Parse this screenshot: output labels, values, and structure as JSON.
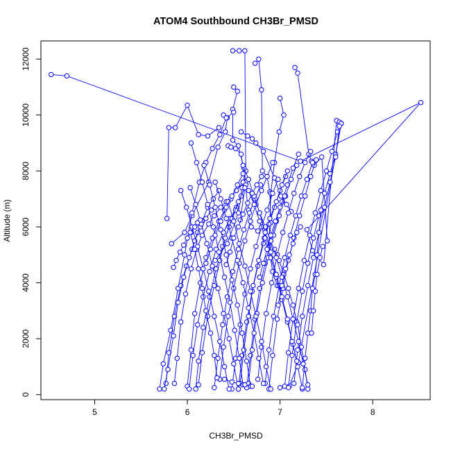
{
  "chart_data": {
    "type": "line",
    "title": "ATOM4 Southbound CH3Br_PMSD",
    "xlabel": "CH3Br_PMSD",
    "ylabel": "Altitude (m)",
    "xlim": [
      4.42,
      8.62
    ],
    "ylim": [
      -180,
      12650
    ],
    "xticks": [
      5,
      6,
      7,
      8
    ],
    "yticks": [
      0,
      2000,
      4000,
      6000,
      8000,
      10000,
      12000
    ],
    "series_color": "#0000ff",
    "markers": "open-circle",
    "grid": false,
    "profiles": [
      {
        "x": [
          5.78,
          5.8,
          5.87,
          6.0,
          6.12,
          6.22,
          6.34
        ],
        "y": [
          6300,
          9550,
          9550,
          10350,
          9300,
          9250,
          9550
        ]
      },
      {
        "x": [
          4.53,
          4.7,
          7.22,
          8.52,
          7.29,
          7.35,
          7.47,
          7.61,
          7.64,
          7.66,
          7.2,
          7.1,
          7.0
        ],
        "y": [
          11450,
          11400,
          8350,
          10450,
          5900,
          5150,
          4650,
          9800,
          9750,
          9700,
          1150,
          300,
          250
        ]
      },
      {
        "x": [
          6.49,
          6.56,
          6.62,
          6.63,
          6.59,
          6.55,
          6.43,
          6.3
        ],
        "y": [
          12300,
          12300,
          12300,
          8000,
          7400,
          6500,
          5400,
          4800
        ]
      },
      {
        "x": [
          6.73,
          6.77,
          6.8,
          6.81,
          6.86,
          6.89,
          6.9,
          6.88
        ],
        "y": [
          11850,
          12000,
          10900,
          8000,
          7800,
          7250,
          6150,
          5300
        ]
      },
      {
        "x": [
          6.5,
          6.54,
          6.49,
          6.49,
          6.55,
          6.61,
          6.63,
          6.57
        ],
        "y": [
          11000,
          10850,
          10200,
          9100,
          8900,
          8100,
          7600,
          6250
        ]
      },
      {
        "x": [
          6.39,
          6.43,
          6.41,
          6.33,
          6.23,
          6.05,
          5.97,
          5.83
        ],
        "y": [
          10000,
          9900,
          9400,
          8850,
          7600,
          6400,
          5800,
          5400
        ]
      },
      {
        "x": [
          7.0,
          7.04,
          6.99,
          6.94,
          6.9,
          6.88,
          6.92,
          6.97
        ],
        "y": [
          10600,
          10000,
          9400,
          8300,
          7200,
          5300,
          4400,
          3900
        ]
      },
      {
        "x": [
          7.16,
          7.19,
          7.31,
          7.34,
          7.37,
          7.45,
          7.51
        ],
        "y": [
          11700,
          11500,
          8600,
          8350,
          8200,
          8500,
          5500
        ]
      },
      {
        "x": [
          6.58,
          6.65,
          6.7,
          6.74,
          6.82,
          6.94,
          7.01,
          7.07,
          7.12
        ],
        "y": [
          9400,
          9250,
          9150,
          9000,
          8700,
          7750,
          7100,
          6800,
          6550
        ]
      },
      {
        "x": [
          6.44,
          6.47,
          6.52,
          6.58,
          6.66,
          6.69,
          6.76
        ],
        "y": [
          8900,
          8850,
          8800,
          8600,
          6600,
          6000,
          5850
        ]
      },
      {
        "x": [
          5.7,
          5.74,
          5.82,
          5.9,
          5.97,
          6.05,
          6.13,
          6.2,
          6.27,
          6.35,
          6.42,
          6.5
        ],
        "y": [
          200,
          1100,
          2300,
          3800,
          5000,
          6500,
          7600,
          8300,
          8800,
          9300,
          9900,
          10100
        ]
      },
      {
        "x": [
          5.77,
          5.8,
          5.86,
          5.93,
          5.99,
          6.05,
          6.11,
          6.16,
          6.22,
          6.28,
          6.34
        ],
        "y": [
          400,
          1500,
          2800,
          3900,
          4600,
          5200,
          5800,
          6200,
          6700,
          7000,
          7300
        ]
      },
      {
        "x": [
          5.75,
          5.79,
          5.85,
          5.9,
          5.96,
          6.02,
          6.08,
          6.14,
          6.2,
          6.26
        ],
        "y": [
          200,
          900,
          2100,
          3300,
          4200,
          4900,
          5500,
          6000,
          6300,
          6600
        ]
      },
      {
        "x": [
          5.86,
          5.89,
          5.93,
          5.98,
          6.04,
          6.1,
          6.16,
          6.23,
          6.29,
          6.36,
          6.42
        ],
        "y": [
          400,
          1300,
          2600,
          3600,
          4500,
          5200,
          5700,
          6100,
          6400,
          6700,
          6900
        ]
      },
      {
        "x": [
          6.0,
          6.04,
          6.08,
          6.14,
          6.2,
          6.27,
          6.34,
          6.4,
          6.47,
          6.53,
          6.6
        ],
        "y": [
          300,
          1600,
          2900,
          4000,
          4900,
          5600,
          6200,
          6600,
          7000,
          7300,
          7600
        ]
      },
      {
        "x": [
          6.02,
          6.06,
          6.11,
          6.17,
          6.24,
          6.31,
          6.39,
          6.46,
          6.53
        ],
        "y": [
          200,
          1400,
          2500,
          3500,
          4400,
          5200,
          5800,
          6300,
          6700
        ]
      },
      {
        "x": [
          6.09,
          6.12,
          6.17,
          6.24,
          6.31,
          6.38,
          6.45,
          6.52,
          6.58,
          6.63
        ],
        "y": [
          200,
          1200,
          2400,
          3500,
          4500,
          5300,
          6000,
          6600,
          7100,
          7500
        ]
      },
      {
        "x": [
          6.12,
          6.16,
          6.22,
          6.29,
          6.35,
          6.41,
          6.48,
          6.55,
          6.62
        ],
        "y": [
          350,
          1500,
          2800,
          3900,
          4800,
          5600,
          6300,
          6900,
          7400
        ]
      },
      {
        "x": [
          6.29,
          6.33,
          6.38,
          6.43,
          6.49,
          6.55,
          6.61,
          6.67,
          6.73,
          6.79
        ],
        "y": [
          250,
          1300,
          2500,
          3500,
          4400,
          5200,
          5900,
          6500,
          7000,
          7500
        ]
      },
      {
        "x": [
          6.35,
          6.39,
          6.44,
          6.5,
          6.56,
          6.62,
          6.68,
          6.74,
          6.8,
          6.86,
          6.92
        ],
        "y": [
          550,
          1700,
          2800,
          3800,
          4700,
          5500,
          6200,
          6800,
          7300,
          7800,
          8300
        ]
      },
      {
        "x": [
          6.48,
          6.52,
          6.57,
          6.62,
          6.68,
          6.74,
          6.8,
          6.86,
          6.92,
          6.98
        ],
        "y": [
          200,
          1300,
          2500,
          3600,
          4500,
          5300,
          6000,
          6600,
          7200,
          7700
        ]
      },
      {
        "x": [
          6.55,
          6.59,
          6.64,
          6.7,
          6.76,
          6.82,
          6.88,
          6.94,
          7.0,
          7.06
        ],
        "y": [
          200,
          1400,
          2600,
          3700,
          4600,
          5400,
          6100,
          6700,
          7300,
          7800
        ]
      },
      {
        "x": [
          6.57,
          6.61,
          6.66,
          6.71,
          6.77,
          6.83,
          6.89,
          6.96,
          7.02,
          7.08
        ],
        "y": [
          400,
          1600,
          2800,
          3900,
          4800,
          5600,
          6300,
          6900,
          7500,
          8000
        ]
      },
      {
        "x": [
          6.64,
          6.68,
          6.73,
          6.78,
          6.84,
          6.9,
          6.96,
          7.02,
          7.08,
          7.14,
          7.2
        ],
        "y": [
          250,
          1400,
          2700,
          3800,
          4700,
          5500,
          6200,
          6900,
          7500,
          8100,
          8600
        ]
      },
      {
        "x": [
          6.66,
          6.7,
          6.75,
          6.81,
          6.87,
          6.93,
          6.99,
          7.06,
          7.12,
          7.18
        ],
        "y": [
          400,
          1600,
          2900,
          4000,
          4900,
          5700,
          6400,
          7100,
          7700,
          8200
        ]
      },
      {
        "x": [
          6.76,
          6.8,
          6.85,
          6.91,
          6.97,
          7.03,
          7.09,
          7.15,
          7.21,
          7.27,
          7.33
        ],
        "y": [
          550,
          1700,
          2900,
          4000,
          5000,
          5800,
          6500,
          7200,
          7800,
          8300,
          8700
        ]
      },
      {
        "x": [
          6.84,
          6.88,
          6.93,
          6.99,
          7.05,
          7.11,
          7.17,
          7.23,
          7.29,
          7.35
        ],
        "y": [
          400,
          1600,
          2800,
          3900,
          4900,
          5700,
          6400,
          7100,
          7700,
          8300
        ]
      },
      {
        "x": [
          6.88,
          6.92,
          6.97,
          7.03,
          7.09,
          7.15,
          7.21,
          7.27,
          7.33,
          7.39
        ],
        "y": [
          200,
          1400,
          2700,
          3800,
          4800,
          5600,
          6400,
          7100,
          7800,
          8400
        ]
      },
      {
        "x": [
          7.05,
          7.09,
          7.14,
          7.2,
          7.26,
          7.32,
          7.38,
          7.44,
          7.5,
          7.56,
          7.62
        ],
        "y": [
          300,
          1500,
          2700,
          3800,
          4800,
          5700,
          6500,
          7300,
          8000,
          8700,
          9400
        ]
      },
      {
        "x": [
          7.09,
          7.13,
          7.18,
          7.24,
          7.3,
          7.36,
          7.42,
          7.48,
          7.54,
          7.6,
          7.66
        ],
        "y": [
          250,
          1400,
          2600,
          3700,
          4700,
          5600,
          6400,
          7200,
          7900,
          8600,
          9700
        ]
      },
      {
        "x": [
          7.15,
          7.19,
          7.24,
          7.3,
          7.36,
          7.42,
          7.48,
          7.54,
          7.6,
          7.64
        ],
        "y": [
          400,
          1600,
          2800,
          3900,
          4900,
          5800,
          6700,
          7600,
          8500,
          9600
        ]
      },
      {
        "x": [
          7.24,
          7.27,
          7.3,
          7.33,
          7.35,
          7.38,
          7.4,
          7.42,
          7.44
        ],
        "y": [
          200,
          1300,
          2200,
          3000,
          3800,
          4300,
          5000,
          5800,
          6600
        ]
      },
      {
        "x": [
          7.3,
          7.27,
          7.23,
          7.19,
          7.14,
          7.09,
          7.04,
          6.99,
          6.94
        ],
        "y": [
          200,
          900,
          1700,
          2500,
          3200,
          3800,
          4300,
          4800,
          5200
        ]
      },
      {
        "x": [
          7.3,
          7.25,
          7.2,
          7.14,
          7.08,
          7.02,
          6.96,
          6.9,
          6.84,
          6.78
        ],
        "y": [
          350,
          1100,
          1900,
          2700,
          3500,
          4200,
          4900,
          5500,
          6000,
          6500
        ]
      },
      {
        "x": [
          7.24,
          7.19,
          7.14,
          7.08,
          7.02,
          6.96,
          6.9,
          6.84,
          6.78,
          6.72,
          6.66
        ],
        "y": [
          250,
          1000,
          1800,
          2600,
          3400,
          4200,
          4900,
          5600,
          6200,
          6800,
          7300
        ]
      },
      {
        "x": [
          7.18,
          7.13,
          7.08,
          7.02,
          6.96,
          6.9,
          6.84,
          6.78,
          6.72,
          6.66,
          6.6
        ],
        "y": [
          1200,
          1900,
          2700,
          3500,
          4300,
          5100,
          5800,
          6500,
          7100,
          7700,
          8200
        ]
      },
      {
        "x": [
          6.9,
          6.85,
          6.8,
          6.74,
          6.68,
          6.62,
          6.56,
          6.5,
          6.44
        ],
        "y": [
          200,
          1000,
          1900,
          2800,
          3700,
          4600,
          5400,
          6200,
          6900
        ]
      },
      {
        "x": [
          6.82,
          6.77,
          6.72,
          6.66,
          6.6,
          6.54,
          6.48,
          6.42,
          6.36,
          6.3
        ],
        "y": [
          400,
          1300,
          2200,
          3100,
          4000,
          4800,
          5600,
          6300,
          7000,
          7600
        ]
      },
      {
        "x": [
          6.55,
          6.5,
          6.45,
          6.39,
          6.33,
          6.27,
          6.21,
          6.15,
          6.09,
          6.03
        ],
        "y": [
          200,
          1100,
          2000,
          2900,
          3800,
          4600,
          5400,
          6100,
          6800,
          7400
        ]
      },
      {
        "x": [
          6.45,
          6.4,
          6.35,
          6.29,
          6.23,
          6.17,
          6.11,
          6.05,
          5.99,
          5.93
        ],
        "y": [
          200,
          1000,
          1900,
          2800,
          3700,
          4500,
          5300,
          6000,
          6700,
          7300
        ]
      },
      {
        "x": [
          6.6,
          6.56,
          6.51,
          6.46,
          6.4,
          6.34,
          6.28,
          6.22,
          6.16,
          6.1,
          6.04
        ],
        "y": [
          350,
          1300,
          2300,
          3300,
          4200,
          5100,
          6000,
          6800,
          7600,
          8300,
          9000
        ]
      },
      {
        "x": [
          6.68,
          6.64,
          6.59,
          6.54,
          6.48,
          6.42,
          6.36,
          6.3,
          6.24,
          6.18
        ],
        "y": [
          300,
          1200,
          2200,
          3200,
          4100,
          5000,
          5900,
          6700,
          7500,
          8200
        ]
      },
      {
        "x": [
          5.85,
          5.88,
          5.92,
          5.96,
          6.0,
          6.04,
          6.08,
          6.11,
          6.14
        ],
        "y": [
          4550,
          4800,
          5100,
          5350,
          5600,
          5800,
          6000,
          6150,
          6250
        ]
      },
      {
        "x": [
          6.32,
          6.29,
          6.25,
          6.2,
          6.16,
          6.12,
          6.08,
          6.03
        ],
        "y": [
          600,
          1400,
          2200,
          3000,
          3800,
          4500,
          5200,
          5800
        ]
      },
      {
        "x": [
          6.42,
          6.46,
          6.5,
          6.55,
          6.6,
          6.65,
          6.7,
          6.75,
          6.8
        ],
        "y": [
          4650,
          5100,
          5600,
          6000,
          6450,
          6850,
          7200,
          7500,
          7800
        ]
      },
      {
        "x": [
          6.2,
          6.25,
          6.3,
          6.36,
          6.42,
          6.48,
          6.54,
          6.6
        ],
        "y": [
          4700,
          5200,
          5700,
          6200,
          6700,
          7100,
          7500,
          7900
        ]
      },
      {
        "x": [
          6.98,
          7.02,
          7.06,
          7.1,
          7.14,
          7.18,
          7.22
        ],
        "y": [
          3200,
          3900,
          4500,
          5000,
          5400,
          5800,
          6000
        ]
      },
      {
        "x": [
          7.34,
          7.36,
          7.38,
          7.4,
          7.43,
          7.46
        ],
        "y": [
          2200,
          3000,
          3700,
          4300,
          4900,
          5300
        ]
      },
      {
        "x": [
          6.78,
          6.82,
          6.86,
          6.9,
          6.95,
          7.0,
          7.05
        ],
        "y": [
          4200,
          4700,
          5200,
          5700,
          6200,
          6700,
          7100
        ]
      },
      {
        "x": [
          6.4,
          6.48,
          6.55,
          6.62,
          6.7
        ],
        "y": [
          550,
          450,
          400,
          350,
          300
        ]
      }
    ]
  }
}
